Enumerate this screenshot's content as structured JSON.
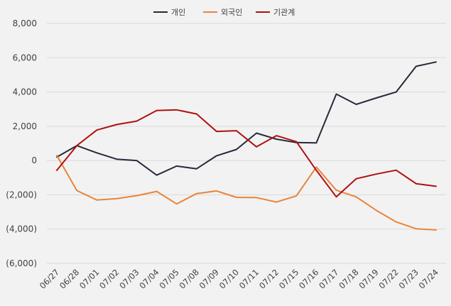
{
  "chart_data": {
    "type": "line",
    "x": [
      "06/27",
      "06/28",
      "07/01",
      "07/02",
      "07/03",
      "07/04",
      "07/05",
      "07/08",
      "07/09",
      "07/10",
      "07/11",
      "07/12",
      "07/15",
      "07/16",
      "07/17",
      "07/18",
      "07/19",
      "07/22",
      "07/23",
      "07/24"
    ],
    "y_ticks": [
      "(6,000)",
      "(4,000)",
      "(2,000)",
      "0",
      "2,000",
      "4,000",
      "6,000",
      "8,000"
    ],
    "ylim": [
      -6000,
      8000
    ],
    "grid": true,
    "legend_position": "top",
    "series": [
      {
        "name": "개인",
        "color": "#252a3a",
        "values": [
          200,
          870,
          450,
          80,
          0,
          -850,
          -320,
          -480,
          280,
          650,
          1600,
          1250,
          1050,
          1030,
          3880,
          3280,
          3650,
          4000,
          5500,
          5750
        ]
      },
      {
        "name": "외국인",
        "color": "#e8843a",
        "values": [
          300,
          -1750,
          -2300,
          -2220,
          -2050,
          -1800,
          -2530,
          -1930,
          -1770,
          -2150,
          -2160,
          -2420,
          -2060,
          -380,
          -1730,
          -2120,
          -2900,
          -3580,
          -3980,
          -4050
        ]
      },
      {
        "name": "기관계",
        "color": "#b01010",
        "values": [
          -570,
          870,
          1780,
          2100,
          2300,
          2920,
          2960,
          2720,
          1700,
          1740,
          800,
          1450,
          1100,
          -570,
          -2120,
          -1060,
          -790,
          -560,
          -1350,
          -1500
        ]
      }
    ]
  }
}
